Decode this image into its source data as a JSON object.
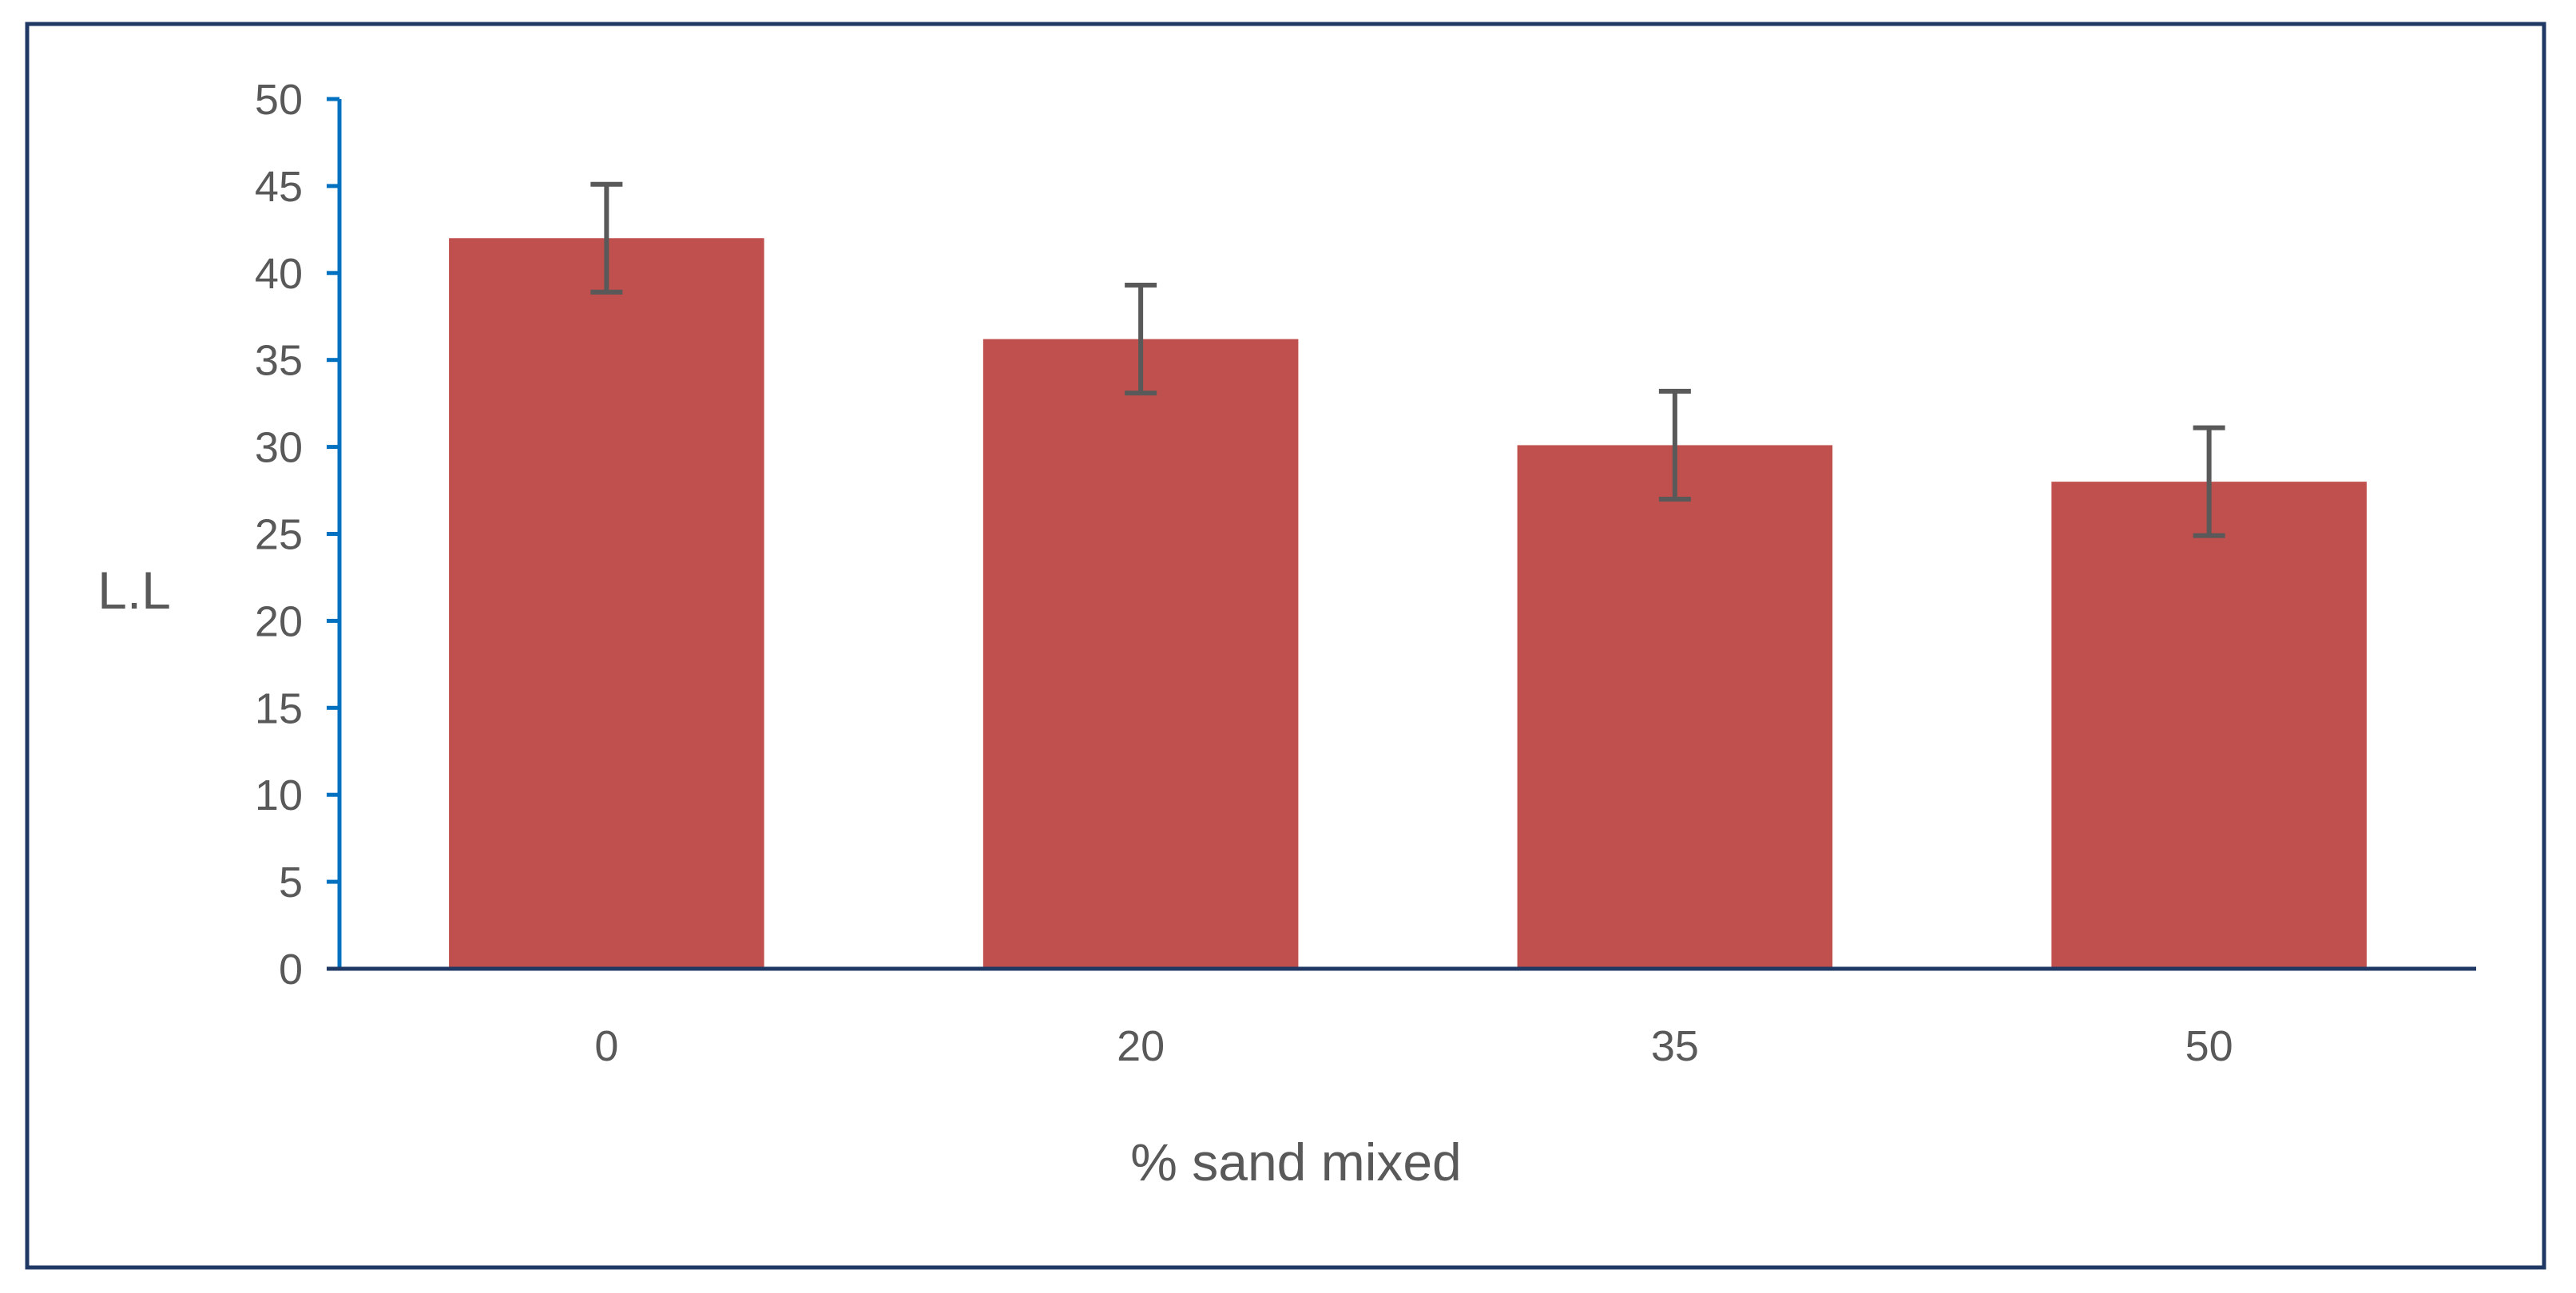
{
  "chart_data": {
    "type": "bar",
    "title": "",
    "xlabel": "% sand mixed",
    "ylabel": "L.L",
    "categories": [
      "0",
      "20",
      "35",
      "50"
    ],
    "values": [
      42,
      36.2,
      30.1,
      28
    ],
    "error": [
      3.1,
      3.1,
      3.1,
      3.1
    ],
    "ylim": [
      0,
      50
    ],
    "yticks": [
      "0",
      "5",
      "10",
      "15",
      "20",
      "25",
      "30",
      "35",
      "40",
      "45",
      "50"
    ],
    "grid": false,
    "legend": "none",
    "colors": {
      "bar": "#C0504D",
      "error_bar": "#595959",
      "axis": "#0070C0",
      "x_axis": "#1F3864",
      "frame": "#1F3864",
      "text": "#595959"
    }
  }
}
